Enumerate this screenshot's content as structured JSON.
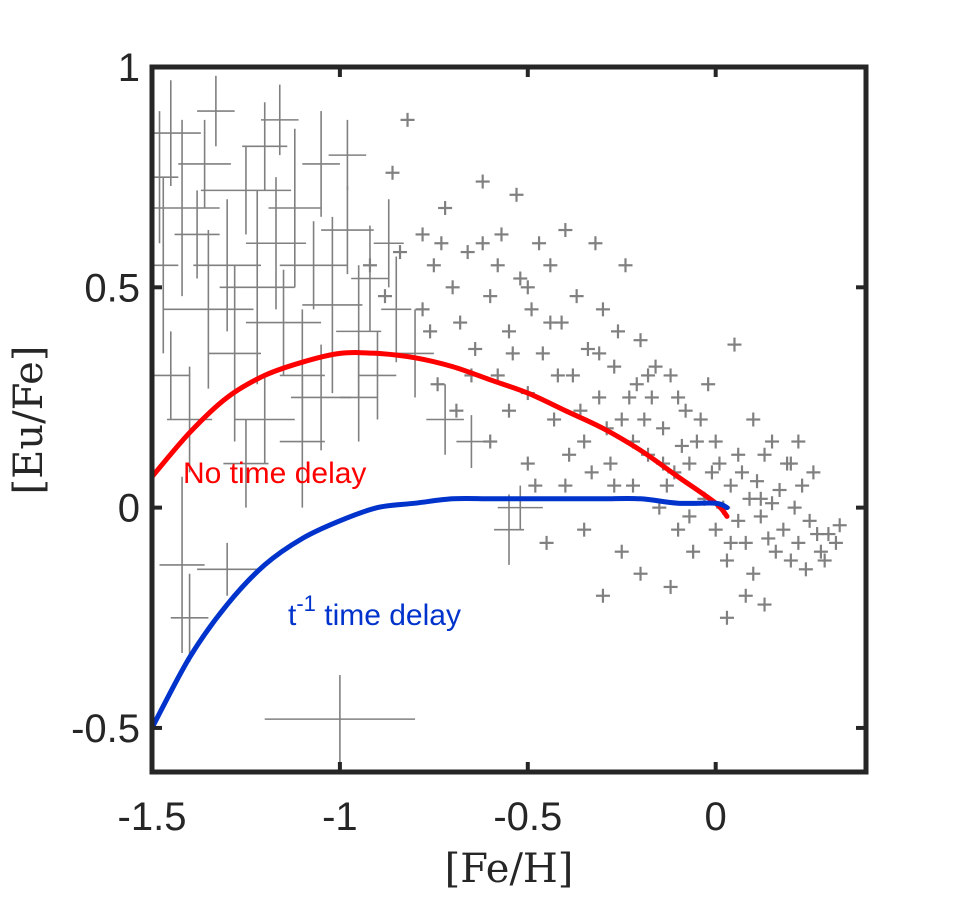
{
  "chart_data": {
    "type": "scatter",
    "title": "",
    "xlabel": "[Fe/H]",
    "ylabel": "[Eu/Fe]",
    "xlim": [
      -1.5,
      0.4
    ],
    "ylim": [
      -0.6,
      1.0
    ],
    "xticks": [
      -1.5,
      -1,
      -0.5,
      0
    ],
    "xtick_labels": [
      "-1.5",
      "-1",
      "-0.5",
      "0"
    ],
    "yticks": [
      -0.5,
      0,
      0.5,
      1
    ],
    "ytick_labels": [
      "-0.5",
      "0",
      "0.5",
      "1"
    ],
    "grid": false,
    "box": true,
    "observations": {
      "name": "Observed stars",
      "marker": "+",
      "color": "#808080",
      "points_with_errors": [
        {
          "x": -1.48,
          "y": 0.75,
          "xerr": 0.05,
          "yerr": 0.15
        },
        {
          "x": -1.45,
          "y": 0.85,
          "xerr": 0.08,
          "yerr": 0.12
        },
        {
          "x": -1.42,
          "y": 0.68,
          "xerr": 0.1,
          "yerr": 0.2
        },
        {
          "x": -1.38,
          "y": 0.62,
          "xerr": 0.06,
          "yerr": 0.1
        },
        {
          "x": -1.35,
          "y": 0.45,
          "xerr": 0.12,
          "yerr": 0.18
        },
        {
          "x": -1.33,
          "y": 0.9,
          "xerr": 0.05,
          "yerr": 0.08
        },
        {
          "x": -1.3,
          "y": 0.55,
          "xerr": 0.09,
          "yerr": 0.15
        },
        {
          "x": -1.28,
          "y": 0.35,
          "xerr": 0.07,
          "yerr": 0.2
        },
        {
          "x": -1.25,
          "y": 0.72,
          "xerr": 0.12,
          "yerr": 0.1
        },
        {
          "x": -1.22,
          "y": 0.5,
          "xerr": 0.1,
          "yerr": 0.22
        },
        {
          "x": -1.2,
          "y": 0.82,
          "xerr": 0.06,
          "yerr": 0.1
        },
        {
          "x": -1.17,
          "y": 0.6,
          "xerr": 0.08,
          "yerr": 0.15
        },
        {
          "x": -1.15,
          "y": 0.42,
          "xerr": 0.1,
          "yerr": 0.12
        },
        {
          "x": -1.12,
          "y": 0.68,
          "xerr": 0.07,
          "yerr": 0.18
        },
        {
          "x": -1.1,
          "y": 0.3,
          "xerr": 0.06,
          "yerr": 0.15
        },
        {
          "x": -1.07,
          "y": 0.55,
          "xerr": 0.09,
          "yerr": 0.1
        },
        {
          "x": -1.05,
          "y": 0.78,
          "xerr": 0.05,
          "yerr": 0.12
        },
        {
          "x": -1.02,
          "y": 0.46,
          "xerr": 0.08,
          "yerr": 0.2
        },
        {
          "x": -0.98,
          "y": 0.63,
          "xerr": 0.07,
          "yerr": 0.1
        },
        {
          "x": -0.95,
          "y": 0.4,
          "xerr": 0.06,
          "yerr": 0.15
        },
        {
          "x": -0.92,
          "y": 0.52,
          "xerr": 0.05,
          "yerr": 0.12
        },
        {
          "x": -0.9,
          "y": 0.3,
          "xerr": 0.05,
          "yerr": 0.1
        },
        {
          "x": -0.87,
          "y": 0.6,
          "xerr": 0.04,
          "yerr": 0.1
        },
        {
          "x": -0.85,
          "y": 0.45,
          "xerr": 0.04,
          "yerr": 0.12
        },
        {
          "x": -0.8,
          "y": 0.35,
          "xerr": 0.05,
          "yerr": 0.1
        },
        {
          "x": -1.45,
          "y": 0.3,
          "xerr": 0.05,
          "yerr": 0.1
        },
        {
          "x": -1.4,
          "y": 0.2,
          "xerr": 0.06,
          "yerr": 0.12
        },
        {
          "x": -1.42,
          "y": -0.13,
          "xerr": 0.06,
          "yerr": 0.2
        },
        {
          "x": -1.3,
          "y": -0.14,
          "xerr": 0.08,
          "yerr": 0.06
        },
        {
          "x": -1.4,
          "y": -0.25,
          "xerr": 0.05,
          "yerr": 0.1
        },
        {
          "x": -1.0,
          "y": -0.48,
          "xerr": 0.2,
          "yerr": 0.1
        },
        {
          "x": -0.55,
          "y": -0.05,
          "xerr": 0.04,
          "yerr": 0.08
        },
        {
          "x": -0.52,
          "y": 0.0,
          "xerr": 0.06,
          "yerr": 0.05
        },
        {
          "x": -0.95,
          "y": 0.25,
          "xerr": 0.05,
          "yerr": 0.1
        },
        {
          "x": -1.1,
          "y": 0.15,
          "xerr": 0.06,
          "yerr": 0.15
        },
        {
          "x": -1.25,
          "y": 0.1,
          "xerr": 0.06,
          "yerr": 0.1
        },
        {
          "x": -1.2,
          "y": 0.2,
          "xerr": 0.08,
          "yerr": 0.1
        },
        {
          "x": -1.47,
          "y": 0.55,
          "xerr": 0.04,
          "yerr": 0.2
        },
        {
          "x": -1.36,
          "y": 0.78,
          "xerr": 0.07,
          "yerr": 0.1
        },
        {
          "x": -1.16,
          "y": 0.88,
          "xerr": 0.05,
          "yerr": 0.08
        },
        {
          "x": -0.98,
          "y": 0.8,
          "xerr": 0.05,
          "yerr": 0.08
        },
        {
          "x": -1.05,
          "y": 0.25,
          "xerr": 0.08,
          "yerr": 0.12
        },
        {
          "x": -0.72,
          "y": 0.2,
          "xerr": 0.05,
          "yerr": 0.08
        },
        {
          "x": -0.65,
          "y": 0.15,
          "xerr": 0.04,
          "yerr": 0.06
        }
      ],
      "points": [
        {
          "x": -0.82,
          "y": 0.88
        },
        {
          "x": -0.78,
          "y": 0.62
        },
        {
          "x": -0.75,
          "y": 0.55
        },
        {
          "x": -0.72,
          "y": 0.68
        },
        {
          "x": -0.7,
          "y": 0.5
        },
        {
          "x": -0.68,
          "y": 0.42
        },
        {
          "x": -0.66,
          "y": 0.58
        },
        {
          "x": -0.64,
          "y": 0.36
        },
        {
          "x": -0.62,
          "y": 0.74
        },
        {
          "x": -0.6,
          "y": 0.48
        },
        {
          "x": -0.58,
          "y": 0.3
        },
        {
          "x": -0.57,
          "y": 0.62
        },
        {
          "x": -0.55,
          "y": 0.4
        },
        {
          "x": -0.53,
          "y": 0.71
        },
        {
          "x": -0.52,
          "y": 0.52
        },
        {
          "x": -0.5,
          "y": 0.26
        },
        {
          "x": -0.49,
          "y": 0.45
        },
        {
          "x": -0.47,
          "y": 0.6
        },
        {
          "x": -0.46,
          "y": 0.35
        },
        {
          "x": -0.44,
          "y": 0.55
        },
        {
          "x": -0.43,
          "y": 0.2
        },
        {
          "x": -0.41,
          "y": 0.42
        },
        {
          "x": -0.4,
          "y": 0.63
        },
        {
          "x": -0.38,
          "y": 0.3
        },
        {
          "x": -0.37,
          "y": 0.48
        },
        {
          "x": -0.35,
          "y": 0.15
        },
        {
          "x": -0.34,
          "y": 0.36
        },
        {
          "x": -0.32,
          "y": 0.6
        },
        {
          "x": -0.31,
          "y": 0.25
        },
        {
          "x": -0.3,
          "y": 0.45
        },
        {
          "x": -0.28,
          "y": 0.1
        },
        {
          "x": -0.27,
          "y": 0.32
        },
        {
          "x": -0.25,
          "y": 0.2
        },
        {
          "x": -0.24,
          "y": 0.55
        },
        {
          "x": -0.22,
          "y": 0.05
        },
        {
          "x": -0.21,
          "y": 0.28
        },
        {
          "x": -0.2,
          "y": 0.38
        },
        {
          "x": -0.18,
          "y": 0.12
        },
        {
          "x": -0.17,
          "y": 0.25
        },
        {
          "x": -0.15,
          "y": 0.0
        },
        {
          "x": -0.14,
          "y": 0.18
        },
        {
          "x": -0.12,
          "y": 0.3
        },
        {
          "x": -0.11,
          "y": 0.08
        },
        {
          "x": -0.1,
          "y": -0.05
        },
        {
          "x": -0.08,
          "y": 0.22
        },
        {
          "x": -0.07,
          "y": 0.1
        },
        {
          "x": -0.06,
          "y": -0.1
        },
        {
          "x": -0.05,
          "y": 0.15
        },
        {
          "x": -0.03,
          "y": 0.02
        },
        {
          "x": -0.02,
          "y": 0.28
        },
        {
          "x": 0.0,
          "y": -0.05
        },
        {
          "x": 0.01,
          "y": 0.1
        },
        {
          "x": 0.02,
          "y": 0.0
        },
        {
          "x": 0.03,
          "y": -0.12
        },
        {
          "x": 0.04,
          "y": 0.05
        },
        {
          "x": 0.05,
          "y": 0.37
        },
        {
          "x": 0.06,
          "y": -0.03
        },
        {
          "x": 0.07,
          "y": 0.08
        },
        {
          "x": 0.08,
          "y": -0.08
        },
        {
          "x": 0.09,
          "y": 0.02
        },
        {
          "x": 0.1,
          "y": -0.15
        },
        {
          "x": 0.11,
          "y": 0.06
        },
        {
          "x": 0.12,
          "y": -0.02
        },
        {
          "x": 0.13,
          "y": 0.12
        },
        {
          "x": 0.14,
          "y": -0.07
        },
        {
          "x": 0.15,
          "y": 0.01
        },
        {
          "x": 0.16,
          "y": -0.1
        },
        {
          "x": 0.17,
          "y": 0.04
        },
        {
          "x": 0.18,
          "y": -0.05
        },
        {
          "x": 0.19,
          "y": 0.1
        },
        {
          "x": 0.2,
          "y": -0.12
        },
        {
          "x": 0.21,
          "y": 0.0
        },
        {
          "x": 0.22,
          "y": -0.08
        },
        {
          "x": 0.23,
          "y": 0.05
        },
        {
          "x": 0.24,
          "y": -0.14
        },
        {
          "x": 0.25,
          "y": -0.03
        },
        {
          "x": 0.26,
          "y": 0.08
        },
        {
          "x": 0.28,
          "y": -0.1
        },
        {
          "x": 0.3,
          "y": -0.06
        },
        {
          "x": 0.32,
          "y": -0.08
        },
        {
          "x": 0.33,
          "y": -0.04
        },
        {
          "x": 0.03,
          "y": -0.25
        },
        {
          "x": 0.13,
          "y": -0.22
        },
        {
          "x": -0.3,
          "y": -0.2
        },
        {
          "x": -0.12,
          "y": -0.18
        },
        {
          "x": -0.2,
          "y": -0.15
        },
        {
          "x": 0.08,
          "y": -0.2
        },
        {
          "x": -0.4,
          "y": 0.05
        },
        {
          "x": -0.45,
          "y": -0.08
        },
        {
          "x": -0.35,
          "y": -0.05
        },
        {
          "x": -0.25,
          "y": -0.1
        },
        {
          "x": -0.65,
          "y": 0.3
        },
        {
          "x": -0.6,
          "y": 0.15
        },
        {
          "x": -0.55,
          "y": 0.22
        },
        {
          "x": -0.5,
          "y": 0.1
        },
        {
          "x": -0.48,
          "y": 0.05
        },
        {
          "x": -0.42,
          "y": 0.3
        },
        {
          "x": -0.36,
          "y": 0.22
        },
        {
          "x": -0.33,
          "y": 0.08
        },
        {
          "x": -0.29,
          "y": 0.18
        },
        {
          "x": -0.26,
          "y": 0.4
        },
        {
          "x": -0.23,
          "y": 0.25
        },
        {
          "x": -0.19,
          "y": 0.2
        },
        {
          "x": -0.16,
          "y": 0.32
        },
        {
          "x": -0.13,
          "y": 0.05
        },
        {
          "x": -0.09,
          "y": 0.14
        },
        {
          "x": -0.04,
          "y": 0.2
        },
        {
          "x": -0.01,
          "y": 0.08
        },
        {
          "x": -0.76,
          "y": 0.4
        },
        {
          "x": -0.74,
          "y": 0.28
        },
        {
          "x": -0.69,
          "y": 0.22
        },
        {
          "x": -0.62,
          "y": 0.6
        },
        {
          "x": -0.58,
          "y": 0.55
        },
        {
          "x": -0.54,
          "y": 0.35
        },
        {
          "x": -0.5,
          "y": 0.5
        },
        {
          "x": -0.44,
          "y": 0.42
        },
        {
          "x": -0.39,
          "y": 0.12
        },
        {
          "x": -0.31,
          "y": 0.35
        },
        {
          "x": -0.27,
          "y": 0.05
        },
        {
          "x": -0.22,
          "y": 0.15
        },
        {
          "x": -0.18,
          "y": 0.3
        },
        {
          "x": -0.14,
          "y": 0.1
        },
        {
          "x": -0.1,
          "y": 0.25
        },
        {
          "x": -0.07,
          "y": -0.02
        },
        {
          "x": 0.0,
          "y": 0.15
        },
        {
          "x": 0.04,
          "y": -0.08
        },
        {
          "x": 0.1,
          "y": 0.2
        },
        {
          "x": 0.15,
          "y": 0.15
        },
        {
          "x": 0.2,
          "y": 0.1
        },
        {
          "x": 0.22,
          "y": 0.15
        },
        {
          "x": 0.27,
          "y": -0.06
        },
        {
          "x": 0.29,
          "y": -0.12
        },
        {
          "x": 0.12,
          "y": 0.02
        },
        {
          "x": 0.06,
          "y": 0.12
        },
        {
          "x": -0.86,
          "y": 0.76
        },
        {
          "x": -0.92,
          "y": 0.55
        },
        {
          "x": -0.88,
          "y": 0.48
        },
        {
          "x": -0.84,
          "y": 0.58
        },
        {
          "x": -0.78,
          "y": 0.45
        },
        {
          "x": -0.73,
          "y": 0.6
        }
      ]
    },
    "series": [
      {
        "name": "No time delay",
        "color": "#ff0000",
        "x": [
          -1.5,
          -1.4,
          -1.3,
          -1.2,
          -1.1,
          -1.0,
          -0.9,
          -0.8,
          -0.7,
          -0.6,
          -0.5,
          -0.4,
          -0.3,
          -0.2,
          -0.1,
          0.0,
          0.03
        ],
        "y": [
          0.07,
          0.17,
          0.25,
          0.3,
          0.33,
          0.35,
          0.35,
          0.34,
          0.32,
          0.29,
          0.26,
          0.22,
          0.18,
          0.13,
          0.07,
          0.01,
          -0.02
        ]
      },
      {
        "name": "t^-1 time delay",
        "color": "#0033cc",
        "x": [
          -1.5,
          -1.4,
          -1.3,
          -1.2,
          -1.1,
          -1.0,
          -0.9,
          -0.8,
          -0.7,
          -0.6,
          -0.5,
          -0.4,
          -0.3,
          -0.2,
          -0.1,
          0.0,
          0.03
        ],
        "y": [
          -0.5,
          -0.34,
          -0.22,
          -0.13,
          -0.07,
          -0.03,
          0.0,
          0.01,
          0.02,
          0.02,
          0.02,
          0.02,
          0.02,
          0.02,
          0.01,
          0.01,
          0.0
        ]
      }
    ],
    "annotations": [
      {
        "text": "No time delay",
        "color": "#ff0000"
      },
      {
        "text_base": "t",
        "text_sup": "-1",
        "text_rest": " time delay",
        "color": "#0033cc"
      }
    ]
  }
}
